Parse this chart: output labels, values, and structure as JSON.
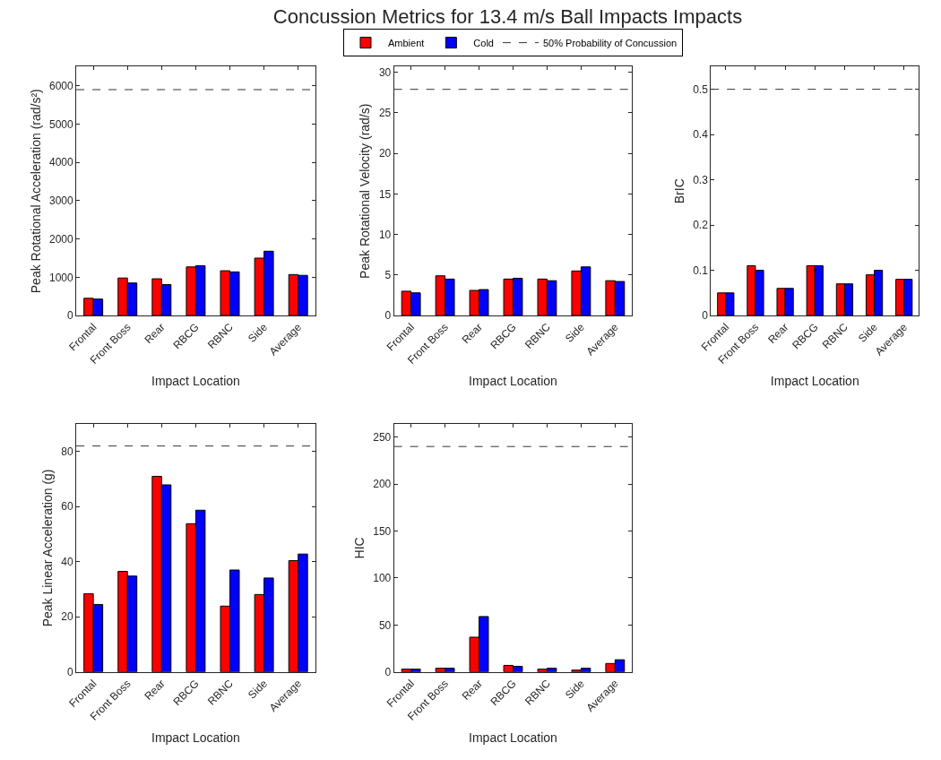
{
  "chart_data": [
    {
      "type": "bar",
      "xlabel": "Impact Location",
      "ylabel": "Peak Rotational Acceleration (rad/s²)",
      "categories": [
        "Frontal",
        "Front Boss",
        "Rear",
        "RBCG",
        "RBNC",
        "Side",
        "Average"
      ],
      "ylim": [
        0,
        6500
      ],
      "yticks": [
        0,
        1000,
        2000,
        3000,
        4000,
        5000,
        6000
      ],
      "series": [
        {
          "color": "#ff0000",
          "values": [
            450,
            980,
            960,
            1270,
            1170,
            1500,
            1070
          ]
        },
        {
          "color": "#0000ff",
          "values": [
            430,
            850,
            810,
            1300,
            1140,
            1680,
            1050
          ]
        }
      ],
      "ref_lines": [
        {
          "axis": "y",
          "value": 5900,
          "color": "#333333",
          "line_style": "dashed"
        }
      ]
    },
    {
      "type": "bar",
      "title": "Concussion Metrics for 13.4 m/s Ball Impacts Impacts",
      "legend": "top",
      "xlabel": "Impact Location",
      "ylabel": "Peak Rotational Velocity (rad/s)",
      "categories": [
        "Frontal",
        "Front Boss",
        "Rear",
        "RBCG",
        "RBNC",
        "Side",
        "Average"
      ],
      "ylim": [
        0,
        30.7
      ],
      "yticks": [
        0,
        5,
        10,
        15,
        20,
        25,
        30
      ],
      "series": [
        {
          "name": "Ambient",
          "color": "#ff0000",
          "values": [
            3.0,
            4.9,
            3.1,
            4.5,
            4.5,
            5.5,
            4.3
          ]
        },
        {
          "name": "Cold",
          "color": "#0000ff",
          "values": [
            2.8,
            4.5,
            3.2,
            4.6,
            4.3,
            6.0,
            4.2
          ]
        }
      ],
      "ref_lines": [
        {
          "axis": "y",
          "value": 27.9,
          "label": "50% Probability of Concussion",
          "color": "#333333",
          "line_style": "dashed"
        }
      ]
    },
    {
      "type": "bar",
      "xlabel": "Impact Location",
      "ylabel": "BrIC",
      "categories": [
        "Frontal",
        "Front Boss",
        "Rear",
        "RBCG",
        "RBNC",
        "Side",
        "Average"
      ],
      "ylim": [
        0,
        0.55
      ],
      "yticks": [
        0,
        0.1,
        0.2,
        0.3,
        0.4,
        0.5
      ],
      "series": [
        {
          "color": "#ff0000",
          "values": [
            0.05,
            0.11,
            0.06,
            0.11,
            0.07,
            0.09,
            0.08
          ]
        },
        {
          "color": "#0000ff",
          "values": [
            0.05,
            0.1,
            0.06,
            0.11,
            0.07,
            0.1,
            0.08
          ]
        }
      ],
      "ref_lines": [
        {
          "axis": "y",
          "value": 0.5,
          "color": "#333333",
          "line_style": "dashed"
        }
      ]
    },
    {
      "type": "bar",
      "xlabel": "Impact Location",
      "ylabel": "Peak Linear Acceleration (g)",
      "categories": [
        "Frontal",
        "Front Boss",
        "Rear",
        "RBCG",
        "RBNC",
        "Side",
        "Average"
      ],
      "ylim": [
        0,
        90
      ],
      "yticks": [
        0,
        20,
        40,
        60,
        80
      ],
      "series": [
        {
          "color": "#ff0000",
          "values": [
            28.4,
            36.5,
            71,
            53.8,
            23.9,
            28.1,
            40.4
          ]
        },
        {
          "color": "#0000ff",
          "values": [
            24.5,
            34.8,
            67.9,
            58.7,
            37,
            34.1,
            42.8
          ]
        }
      ],
      "ref_lines": [
        {
          "axis": "y",
          "value": 82,
          "color": "#333333",
          "line_style": "dashed"
        }
      ]
    },
    {
      "type": "bar",
      "xlabel": "Impact Location",
      "ylabel": "HIC",
      "categories": [
        "Frontal",
        "Front Boss",
        "Rear",
        "RBCG",
        "RBNC",
        "Side",
        "Average"
      ],
      "ylim": [
        0,
        264
      ],
      "yticks": [
        0,
        50,
        100,
        150,
        200,
        250
      ],
      "series": [
        {
          "color": "#ff0000",
          "values": [
            3,
            4,
            37,
            7,
            3,
            2,
            9
          ]
        },
        {
          "color": "#0000ff",
          "values": [
            3,
            4,
            59,
            6,
            4,
            4,
            13
          ]
        }
      ],
      "ref_lines": [
        {
          "axis": "y",
          "value": 240,
          "color": "#333333",
          "line_style": "dashed"
        }
      ]
    }
  ]
}
